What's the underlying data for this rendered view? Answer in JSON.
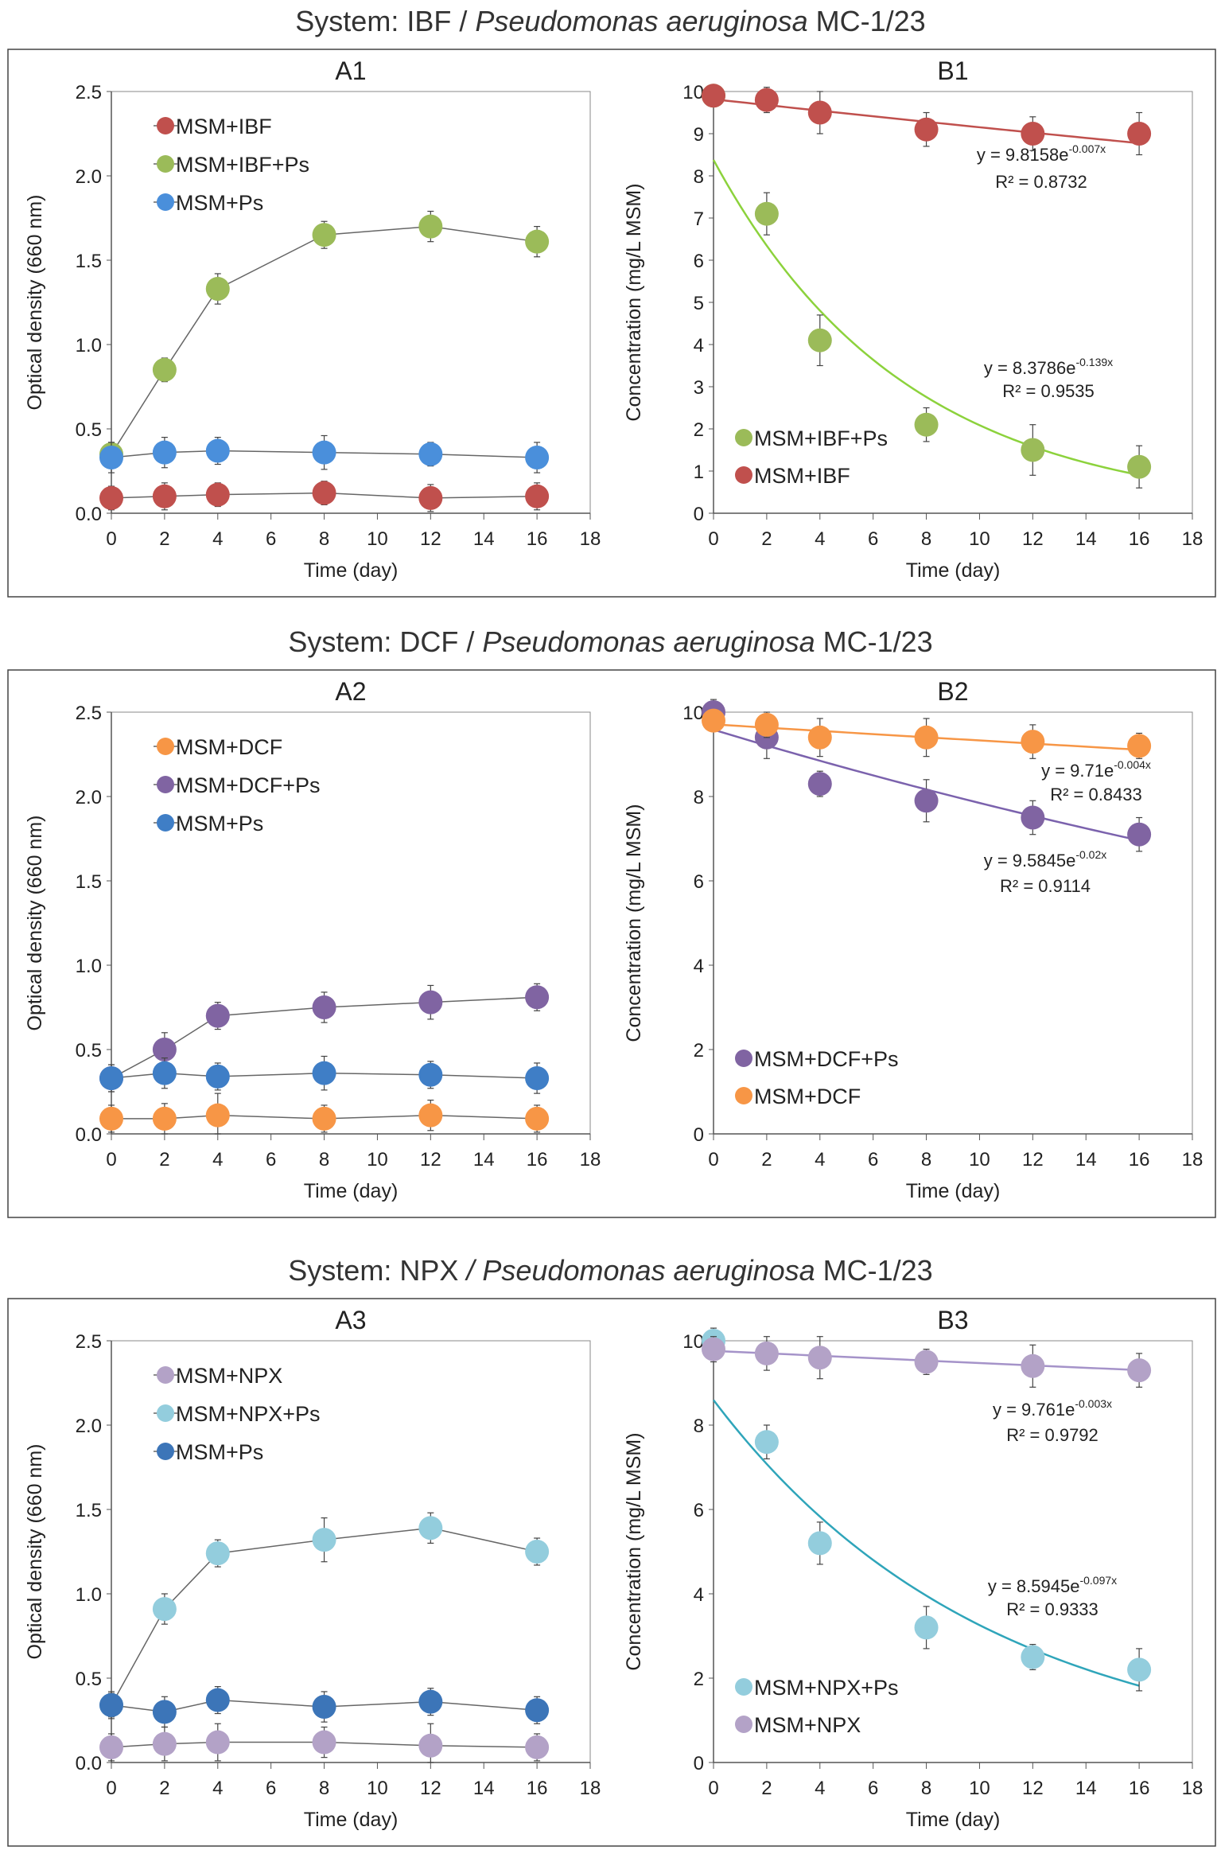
{
  "sections": [
    {
      "title_prefix": "System: IBF / ",
      "title_italic": "Pseudomonas aeruginosa",
      "title_suffix": " MC-1/23"
    },
    {
      "title_prefix": "System: DCF / ",
      "title_italic": "Pseudomonas aeruginosa",
      "title_suffix": " MC-1/23"
    },
    {
      "title_prefix": "System: NPX ",
      "title_italic": "/ Pseudomonas aeruginosa",
      "title_suffix": " MC-1/23"
    }
  ],
  "chart_data": [
    {
      "panel": "A1",
      "type": "line",
      "xlabel": "Time (day)",
      "ylabel": "Optical density (660 nm)",
      "xlim": [
        0,
        18
      ],
      "ylim": [
        0,
        2.5
      ],
      "grid": false,
      "legend": "top-left",
      "xticks": [
        "0",
        "2",
        "4",
        "6",
        "8",
        "10",
        "12",
        "14",
        "16",
        "18"
      ],
      "yticks": [
        "0.0",
        "0.5",
        "1.0",
        "1.5",
        "2.0",
        "2.5"
      ],
      "x": [
        0,
        2,
        4,
        8,
        12,
        16
      ],
      "series": [
        {
          "name": "MSM+IBF",
          "color": "#C0504D",
          "values": [
            0.09,
            0.1,
            0.11,
            0.12,
            0.09,
            0.1
          ],
          "errors": [
            0.07,
            0.08,
            0.07,
            0.07,
            0.08,
            0.08
          ]
        },
        {
          "name": "MSM+IBF+Ps",
          "color": "#9BBB59",
          "values": [
            0.35,
            0.85,
            1.33,
            1.65,
            1.7,
            1.61
          ],
          "errors": [
            0.07,
            0.07,
            0.09,
            0.08,
            0.09,
            0.09
          ]
        },
        {
          "name": "MSM+Ps",
          "color": "#4A8FDB",
          "values": [
            0.33,
            0.36,
            0.37,
            0.36,
            0.35,
            0.33
          ],
          "errors": [
            0.09,
            0.09,
            0.08,
            0.1,
            0.07,
            0.09
          ]
        }
      ]
    },
    {
      "panel": "B1",
      "type": "scatter",
      "xlabel": "Time (day)",
      "ylabel": "Concentration (mg/L MSM)",
      "xlim": [
        0,
        18
      ],
      "ylim": [
        0,
        10
      ],
      "grid": false,
      "legend": "bottom-left",
      "xticks": [
        "0",
        "2",
        "4",
        "6",
        "8",
        "10",
        "12",
        "14",
        "16",
        "18"
      ],
      "yticks": [
        "0",
        "1",
        "2",
        "3",
        "4",
        "5",
        "6",
        "7",
        "8",
        "9",
        "10"
      ],
      "x": [
        0,
        2,
        4,
        8,
        12,
        16
      ],
      "series": [
        {
          "name": "MSM+IBF+Ps",
          "color": "#9BBB59",
          "fit_color": "#8CD23C",
          "values": [
            9.9,
            7.1,
            4.1,
            2.1,
            1.5,
            1.1
          ],
          "errors": [
            0.1,
            0.5,
            0.6,
            0.4,
            0.6,
            0.5
          ],
          "fit": {
            "a": 8.3786,
            "b": -0.139,
            "equation": "y = 8.3786e",
            "exponent": "-0.139x",
            "r2": "R² = 0.9535"
          }
        },
        {
          "name": "MSM+IBF",
          "color": "#C0504D",
          "fit_color": "#C0504D",
          "values": [
            9.9,
            9.8,
            9.5,
            9.1,
            9.0,
            9.0
          ],
          "errors": [
            0.1,
            0.3,
            0.5,
            0.4,
            0.4,
            0.5
          ],
          "fit": {
            "a": 9.8158,
            "b": -0.007,
            "equation": "y = 9.8158e",
            "exponent": "-0.007x",
            "r2": "R² = 0.8732"
          }
        }
      ]
    },
    {
      "panel": "A2",
      "type": "line",
      "xlabel": "Time (day)",
      "ylabel": "Optical density (660 nm)",
      "xlim": [
        0,
        18
      ],
      "ylim": [
        0,
        2.5
      ],
      "grid": false,
      "legend": "top-left",
      "xticks": [
        "0",
        "2",
        "4",
        "6",
        "8",
        "10",
        "12",
        "14",
        "16",
        "18"
      ],
      "yticks": [
        "0.0",
        "0.5",
        "1.0",
        "1.5",
        "2.0",
        "2.5"
      ],
      "x": [
        0,
        2,
        4,
        8,
        12,
        16
      ],
      "series": [
        {
          "name": "MSM+DCF",
          "color": "#F79646",
          "values": [
            0.09,
            0.09,
            0.11,
            0.09,
            0.11,
            0.09
          ],
          "errors": [
            0.08,
            0.09,
            0.13,
            0.08,
            0.09,
            0.08
          ]
        },
        {
          "name": "MSM+DCF+Ps",
          "color": "#8064A2",
          "values": [
            0.33,
            0.5,
            0.7,
            0.75,
            0.78,
            0.81
          ],
          "errors": [
            0.08,
            0.1,
            0.08,
            0.09,
            0.1,
            0.08
          ]
        },
        {
          "name": "MSM+Ps",
          "color": "#3F7EC6",
          "values": [
            0.33,
            0.36,
            0.34,
            0.36,
            0.35,
            0.33
          ],
          "errors": [
            0.08,
            0.09,
            0.08,
            0.1,
            0.08,
            0.09
          ]
        }
      ]
    },
    {
      "panel": "B2",
      "type": "scatter",
      "xlabel": "Time (day)",
      "ylabel": "Concentration (mg/L MSM)",
      "xlim": [
        0,
        18
      ],
      "ylim": [
        0,
        10
      ],
      "grid": false,
      "legend": "bottom-left",
      "xticks": [
        "0",
        "2",
        "4",
        "6",
        "8",
        "10",
        "12",
        "14",
        "16",
        "18"
      ],
      "yticks": [
        "0",
        "2",
        "4",
        "6",
        "8",
        "10"
      ],
      "x": [
        0,
        2,
        4,
        8,
        12,
        16
      ],
      "series": [
        {
          "name": "MSM+DCF+Ps",
          "color": "#8064A2",
          "fit_color": "#7B62AD",
          "values": [
            10.0,
            9.4,
            8.3,
            7.9,
            7.5,
            7.1
          ],
          "errors": [
            0.3,
            0.5,
            0.3,
            0.5,
            0.4,
            0.4
          ],
          "fit": {
            "a": 9.5845,
            "b": -0.02,
            "equation": "y = 9.5845e",
            "exponent": "-0.02x",
            "r2": "R² = 0.9114"
          }
        },
        {
          "name": "MSM+DCF",
          "color": "#F79646",
          "fit_color": "#F79646",
          "values": [
            9.8,
            9.7,
            9.4,
            9.4,
            9.3,
            9.2
          ],
          "errors": [
            0.2,
            0.3,
            0.45,
            0.45,
            0.4,
            0.3
          ],
          "fit": {
            "a": 9.71,
            "b": -0.004,
            "equation": "y = 9.71e",
            "exponent": "-0.004x",
            "r2": "R² = 0.8433"
          }
        }
      ]
    },
    {
      "panel": "A3",
      "type": "line",
      "xlabel": "Time (day)",
      "ylabel": "Optical density (660 nm)",
      "xlim": [
        0,
        18
      ],
      "ylim": [
        0,
        2.5
      ],
      "grid": false,
      "legend": "top-left",
      "xticks": [
        "0",
        "2",
        "4",
        "6",
        "8",
        "10",
        "12",
        "14",
        "16",
        "18"
      ],
      "yticks": [
        "0.0",
        "0.5",
        "1.0",
        "1.5",
        "2.0",
        "2.5"
      ],
      "x": [
        0,
        2,
        4,
        8,
        12,
        16
      ],
      "series": [
        {
          "name": "MSM+NPX",
          "color": "#B3A2C7",
          "values": [
            0.09,
            0.11,
            0.12,
            0.12,
            0.1,
            0.09
          ],
          "errors": [
            0.08,
            0.1,
            0.11,
            0.09,
            0.13,
            0.08
          ]
        },
        {
          "name": "MSM+NPX+Ps",
          "color": "#93CDDD",
          "values": [
            0.34,
            0.91,
            1.24,
            1.32,
            1.39,
            1.25
          ],
          "errors": [
            0.07,
            0.09,
            0.08,
            0.13,
            0.09,
            0.08
          ]
        },
        {
          "name": "MSM+Ps",
          "color": "#3C75B8",
          "values": [
            0.34,
            0.3,
            0.37,
            0.33,
            0.36,
            0.31
          ],
          "errors": [
            0.08,
            0.09,
            0.08,
            0.09,
            0.08,
            0.08
          ]
        }
      ]
    },
    {
      "panel": "B3",
      "type": "scatter",
      "xlabel": "Time (day)",
      "ylabel": "Concentration (mg/L MSM)",
      "xlim": [
        0,
        18
      ],
      "ylim": [
        0,
        10
      ],
      "grid": false,
      "legend": "bottom-left",
      "xticks": [
        "0",
        "2",
        "4",
        "6",
        "8",
        "10",
        "12",
        "14",
        "16",
        "18"
      ],
      "yticks": [
        "0",
        "2",
        "4",
        "6",
        "8",
        "10"
      ],
      "x": [
        0,
        2,
        4,
        8,
        12,
        16
      ],
      "series": [
        {
          "name": "MSM+NPX+Ps",
          "color": "#93CDDD",
          "fit_color": "#2FA5BA",
          "values": [
            10.0,
            7.6,
            5.2,
            3.2,
            2.5,
            2.2
          ],
          "errors": [
            0.3,
            0.4,
            0.5,
            0.5,
            0.3,
            0.5
          ],
          "fit": {
            "a": 8.5945,
            "b": -0.097,
            "equation": "y = 8.5945e",
            "exponent": "-0.097x",
            "r2": "R² = 0.9333"
          }
        },
        {
          "name": "MSM+NPX",
          "color": "#B3A2C7",
          "fit_color": "#A593C9",
          "values": [
            9.8,
            9.7,
            9.6,
            9.5,
            9.4,
            9.3
          ],
          "errors": [
            0.3,
            0.4,
            0.5,
            0.3,
            0.5,
            0.4
          ],
          "fit": {
            "a": 9.761,
            "b": -0.003,
            "equation": "y = 9.761e",
            "exponent": "-0.003x",
            "r2": "R² = 0.9792"
          }
        }
      ]
    }
  ]
}
